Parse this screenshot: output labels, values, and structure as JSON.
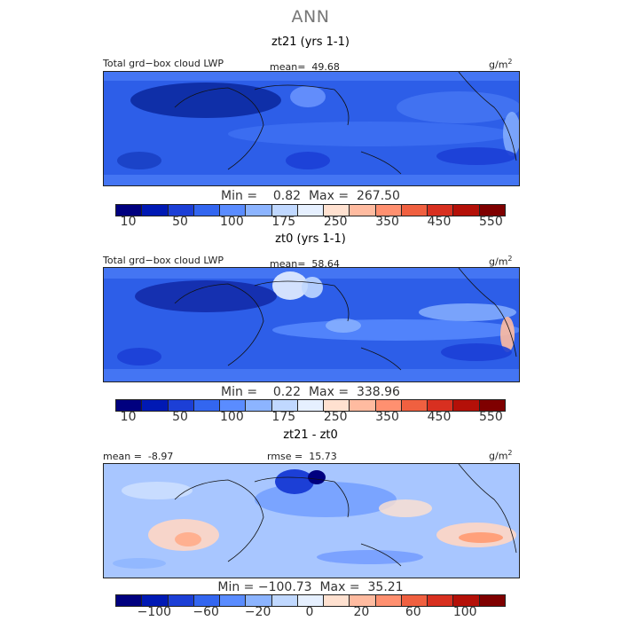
{
  "figure_title": "ANN",
  "unit_base": "g/m",
  "unit_exp": "2",
  "panels": [
    {
      "subtitle": "zt21 (yrs 1-1)",
      "label": "Total grd−box cloud LWP",
      "stat": "mean=  49.68",
      "minmax": "Min =    0.82  Max =  267.50"
    },
    {
      "subtitle": "zt0 (yrs 1-1)",
      "label": "Total grd−box cloud LWP",
      "stat": "mean=  58.64",
      "minmax": "Min =    0.22  Max =  338.96"
    },
    {
      "subtitle": "zt21 - zt0",
      "label": "mean =  -8.97",
      "stat": "rmse =  15.73",
      "minmax": "Min = −100.73  Max =  35.21"
    }
  ],
  "colorbar_lwp": {
    "colors": [
      "#00007f",
      "#0019b4",
      "#1c3fd6",
      "#3366f0",
      "#5a8cff",
      "#8cb4ff",
      "#c0d8ff",
      "#e6f0ff",
      "#ffe1d0",
      "#ffbba0",
      "#ff9070",
      "#f06040",
      "#d83020",
      "#b41008",
      "#7f0000"
    ],
    "labels": [
      "10",
      "50",
      "100",
      "175",
      "250",
      "350",
      "450",
      "550"
    ]
  },
  "colorbar_diff": {
    "colors": [
      "#00007f",
      "#0019b4",
      "#1c3fd6",
      "#3366f0",
      "#5a8cff",
      "#8cb4ff",
      "#c0d8ff",
      "#e6f0ff",
      "#ffe1d0",
      "#ffbba0",
      "#ff9070",
      "#f06040",
      "#d83020",
      "#b41008",
      "#7f0000"
    ],
    "labels": [
      "−100",
      "−60",
      "−20",
      "0",
      "20",
      "60",
      "100"
    ]
  }
}
